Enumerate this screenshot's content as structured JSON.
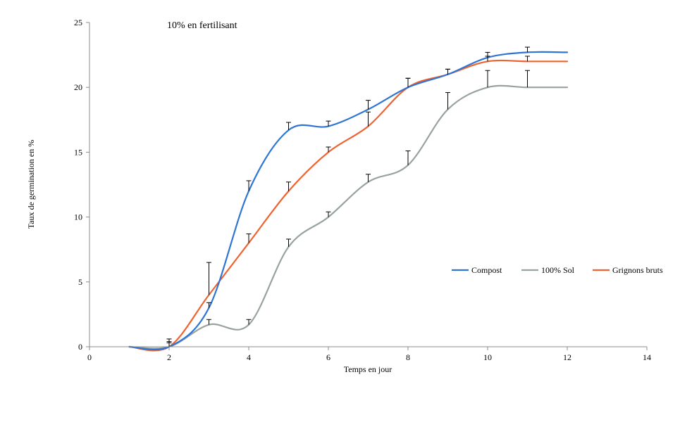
{
  "chart_data": {
    "type": "line",
    "title": "10% en fertilisant",
    "xlabel": "Temps en jour",
    "ylabel": "Taux de germination en %",
    "xlim": [
      0,
      14
    ],
    "ylim": [
      0,
      25
    ],
    "x_ticks": [
      0,
      2,
      4,
      6,
      8,
      10,
      12,
      14
    ],
    "y_ticks": [
      0,
      5,
      10,
      15,
      20,
      25
    ],
    "x_tick_labels": [
      "0",
      "2",
      "4",
      "6",
      "8",
      "10",
      "12",
      "14"
    ],
    "y_tick_labels": [
      "0",
      "5",
      "10",
      "15",
      "20",
      "25"
    ],
    "grid": false,
    "legend_position": "right",
    "series": [
      {
        "name": "Compost",
        "color": "#2E75D6",
        "x": [
          1,
          2,
          3,
          4,
          5,
          6,
          7,
          8,
          9,
          10,
          11,
          12
        ],
        "y": [
          0,
          0,
          3.0,
          12.0,
          16.7,
          17.0,
          18.3,
          20.0,
          21.0,
          22.3,
          22.7,
          22.7
        ],
        "error": [
          null,
          0.6,
          0.4,
          0.8,
          0.6,
          0.4,
          0.7,
          0.7,
          0.4,
          0.4,
          0.4,
          null
        ]
      },
      {
        "name": "100% Sol",
        "color": "#98A39C",
        "x": [
          1,
          2,
          3,
          4,
          5,
          6,
          7,
          8,
          9,
          10,
          11,
          12
        ],
        "y": [
          0,
          0,
          1.7,
          1.7,
          7.7,
          10.0,
          12.7,
          14.0,
          18.3,
          20.0,
          20.0,
          20.0
        ],
        "error": [
          null,
          0.3,
          0.4,
          0.4,
          0.6,
          0.4,
          0.6,
          1.1,
          1.3,
          1.3,
          1.3,
          null
        ]
      },
      {
        "name": "Grignons bruts",
        "color": "#F0622F",
        "x": [
          1,
          2,
          3,
          4,
          5,
          6,
          7,
          8,
          9,
          10,
          11,
          12
        ],
        "y": [
          0,
          0,
          4.0,
          8.0,
          12.0,
          15.0,
          17.0,
          20.0,
          21.0,
          22.0,
          22.0,
          22.0
        ],
        "error": [
          null,
          0.4,
          2.5,
          0.7,
          0.7,
          0.4,
          1.1,
          0.7,
          0.4,
          0.4,
          0.4,
          null
        ]
      }
    ]
  }
}
